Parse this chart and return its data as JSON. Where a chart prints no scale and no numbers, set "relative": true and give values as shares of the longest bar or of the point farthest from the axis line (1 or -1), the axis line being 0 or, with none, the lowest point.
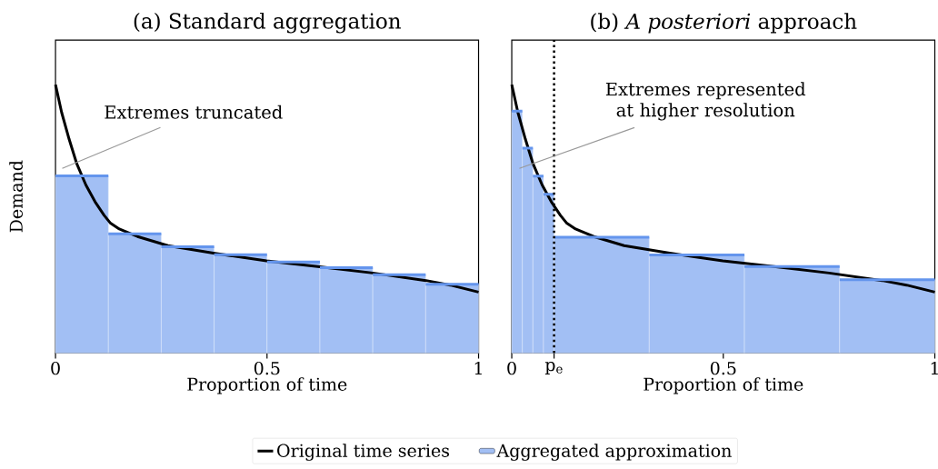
{
  "chart_data": [
    {
      "type": "histogram",
      "title": "(a) Standard aggregation",
      "xlabel": "Proportion of time",
      "ylabel": "Demand",
      "relative": true,
      "xlim": [
        0,
        1
      ],
      "xticks": [
        0,
        0.5,
        1
      ],
      "legend": "bottom",
      "series": [
        {
          "name": "Original time series",
          "type": "line",
          "color": "#000000",
          "x": [
            0,
            0.0144,
            0.0323,
            0.0503,
            0.0718,
            0.0933,
            0.1149,
            0.1292,
            0.1508,
            0.1938,
            0.2656,
            0.3733,
            0.4989,
            0.6245,
            0.7502,
            0.8758,
            0.9332,
            1.0
          ],
          "values": [
            1.0,
            0.897,
            0.796,
            0.705,
            0.626,
            0.564,
            0.513,
            0.485,
            0.462,
            0.434,
            0.4,
            0.372,
            0.343,
            0.321,
            0.298,
            0.27,
            0.253,
            0.227
          ]
        },
        {
          "name": "Aggregated approximation",
          "color": "#a2bff4",
          "bins": [
            0,
            0.125,
            0.25,
            0.375,
            0.5,
            0.625,
            0.75,
            0.875,
            1
          ],
          "values": [
            0.66,
            0.444,
            0.396,
            0.366,
            0.339,
            0.318,
            0.292,
            0.256
          ]
        },
        {
          "type": "line",
          "color": "#6495ed",
          "x": [
            0,
            0.125,
            null,
            0.125,
            0.25,
            null,
            0.25,
            0.375,
            null,
            0.375,
            0.5,
            null,
            0.5,
            0.625,
            null,
            0.625,
            0.75,
            null,
            0.75,
            0.875,
            null,
            0.875,
            1
          ],
          "values": [
            0.66,
            0.66,
            null,
            0.444,
            0.444,
            null,
            0.396,
            0.396,
            null,
            0.366,
            0.366,
            null,
            0.339,
            0.339,
            null,
            0.318,
            0.318,
            null,
            0.292,
            0.292,
            null,
            0.256,
            0.256
          ]
        }
      ],
      "annotations": [
        "Extremes truncated"
      ]
    },
    {
      "type": "histogram",
      "title": "(b) *A posteriori* approach",
      "xlabel": "Proportion of time",
      "relative": true,
      "xlim": [
        0,
        1
      ],
      "xticks": [
        0,
        {
          "value": 0.1,
          "label": "p$_{e}$"
        },
        0.5,
        1
      ],
      "series": [
        {
          "type": "line",
          "color": "#000000",
          "x": [
            0,
            0.0144,
            0.0323,
            0.0503,
            0.0718,
            0.0933,
            0.1149,
            0.1292,
            0.1508,
            0.1938,
            0.2656,
            0.3733,
            0.4989,
            0.6245,
            0.7502,
            0.8758,
            0.9332,
            1.0
          ],
          "values": [
            1.0,
            0.897,
            0.796,
            0.705,
            0.626,
            0.564,
            0.513,
            0.485,
            0.462,
            0.434,
            0.4,
            0.372,
            0.343,
            0.321,
            0.298,
            0.27,
            0.253,
            0.227
          ]
        },
        {
          "color": "#a2bff4",
          "bins": [
            0,
            0.025,
            0.05,
            0.075,
            0.1,
            0.325,
            0.55,
            0.775,
            1
          ],
          "values": [
            0.901,
            0.763,
            0.659,
            0.591,
            0.431,
            0.365,
            0.322,
            0.273
          ]
        },
        {
          "type": "line",
          "color": "#6495ed",
          "x": [
            0,
            0.025,
            null,
            0.025,
            0.05,
            null,
            0.05,
            0.075,
            null,
            0.075,
            0.1,
            null,
            0.1,
            0.325,
            null,
            0.325,
            0.55,
            null,
            0.55,
            0.775,
            null,
            0.775,
            1
          ],
          "values": [
            0.901,
            0.901,
            null,
            0.763,
            0.763,
            null,
            0.659,
            0.659,
            null,
            0.591,
            0.591,
            null,
            0.431,
            0.431,
            null,
            0.365,
            0.365,
            null,
            0.322,
            0.322,
            null,
            0.273,
            0.273
          ]
        }
      ],
      "ref_lines": [
        {
          "axis": "x",
          "value": 0.1,
          "color": "#000000",
          "line_style": "dotted"
        }
      ],
      "annotations": [
        "Extremes represented at higher resolution"
      ]
    }
  ]
}
